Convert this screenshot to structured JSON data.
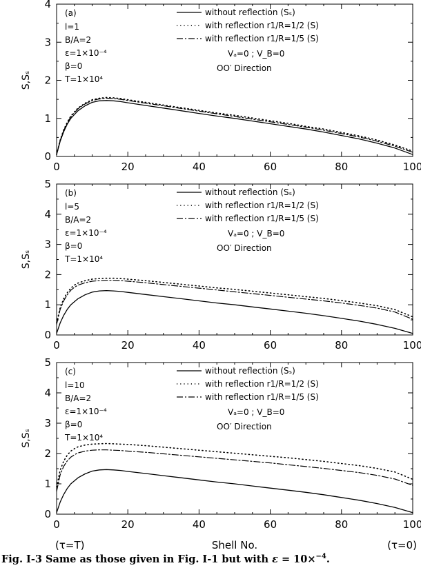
{
  "figure": {
    "caption_prefix": "Fig. I-3 Same as those given in Fig. I-1 but with ",
    "caption_math_eps": "ε",
    "caption_math_eq": " = 10×",
    "caption_math_exp": "−4",
    "caption_end": ".",
    "xlabel": "Shell No.",
    "x_left_annotation": "(τ=T)",
    "x_right_annotation": "(τ=0)"
  },
  "chart_data": [
    {
      "type": "line",
      "panel_label": "(a)",
      "params": [
        "l=1",
        "B/A=2",
        "ε=1×10⁻⁴",
        "β=0",
        "T=1×10⁴"
      ],
      "ylabel": "S,Sₛ",
      "xlim": [
        0,
        100
      ],
      "ylim": [
        0,
        4
      ],
      "xticks": [
        0,
        20,
        40,
        60,
        80,
        100
      ],
      "yticks": [
        0,
        1,
        2,
        3,
        4
      ],
      "grid": false,
      "legend_position": "top-center",
      "velocity_note": "Vₐ=0 ; V_B=0",
      "direction_note": "OO′ Direction",
      "x": [
        0,
        1,
        2,
        3,
        4,
        5,
        6,
        8,
        10,
        12,
        14,
        16,
        18,
        20,
        25,
        30,
        35,
        40,
        45,
        50,
        55,
        60,
        65,
        70,
        75,
        80,
        85,
        90,
        95,
        100
      ],
      "series": [
        {
          "name": "without reflection (Sₛ)",
          "style": "solid",
          "values": [
            0.05,
            0.4,
            0.65,
            0.85,
            1.0,
            1.1,
            1.2,
            1.33,
            1.42,
            1.46,
            1.47,
            1.46,
            1.44,
            1.41,
            1.34,
            1.27,
            1.2,
            1.13,
            1.06,
            1.0,
            0.93,
            0.86,
            0.79,
            0.72,
            0.64,
            0.55,
            0.46,
            0.35,
            0.22,
            0.05
          ]
        },
        {
          "name": "with reflection r1/R=1/2 (S)",
          "style": "dotted",
          "values": [
            0.05,
            0.43,
            0.7,
            0.9,
            1.06,
            1.17,
            1.27,
            1.4,
            1.49,
            1.53,
            1.55,
            1.54,
            1.52,
            1.49,
            1.42,
            1.35,
            1.28,
            1.21,
            1.14,
            1.08,
            1.01,
            0.94,
            0.87,
            0.79,
            0.72,
            0.63,
            0.54,
            0.43,
            0.3,
            0.14
          ]
        },
        {
          "name": "with reflection r1/R=1/5 (S)",
          "style": "dashdot",
          "values": [
            0.05,
            0.42,
            0.68,
            0.88,
            1.04,
            1.15,
            1.25,
            1.38,
            1.47,
            1.51,
            1.53,
            1.52,
            1.5,
            1.47,
            1.4,
            1.33,
            1.26,
            1.19,
            1.12,
            1.05,
            0.98,
            0.91,
            0.84,
            0.77,
            0.69,
            0.6,
            0.51,
            0.4,
            0.27,
            0.11
          ]
        }
      ]
    },
    {
      "type": "line",
      "panel_label": "(b)",
      "params": [
        "l=5",
        "B/A=2",
        "ε=1×10⁻⁴",
        "β=0",
        "T=1×10⁴"
      ],
      "ylabel": "S,Sₛ",
      "xlim": [
        0,
        100
      ],
      "ylim": [
        0,
        5
      ],
      "xticks": [
        0,
        20,
        40,
        60,
        80,
        100
      ],
      "yticks": [
        0,
        1,
        2,
        3,
        4,
        5
      ],
      "grid": false,
      "legend_position": "top-center",
      "velocity_note": "Vₐ=0 ; V_B=0",
      "direction_note": "OO′ Direction",
      "x": [
        0,
        1,
        2,
        3,
        4,
        5,
        6,
        8,
        10,
        12,
        14,
        16,
        18,
        20,
        25,
        30,
        35,
        40,
        45,
        50,
        55,
        60,
        65,
        70,
        75,
        80,
        85,
        90,
        95,
        100
      ],
      "series": [
        {
          "name": "without reflection (Sₛ)",
          "style": "solid",
          "values": [
            0.05,
            0.4,
            0.65,
            0.85,
            1.0,
            1.1,
            1.2,
            1.33,
            1.42,
            1.46,
            1.47,
            1.46,
            1.44,
            1.41,
            1.34,
            1.27,
            1.2,
            1.13,
            1.06,
            1.0,
            0.93,
            0.86,
            0.79,
            0.72,
            0.64,
            0.55,
            0.46,
            0.35,
            0.22,
            0.05
          ]
        },
        {
          "name": "with reflection r1/R=1/2 (S)",
          "style": "dotted",
          "values": [
            0.4,
            0.9,
            1.2,
            1.4,
            1.55,
            1.65,
            1.72,
            1.8,
            1.85,
            1.87,
            1.88,
            1.88,
            1.87,
            1.85,
            1.8,
            1.74,
            1.68,
            1.62,
            1.56,
            1.51,
            1.45,
            1.39,
            1.33,
            1.27,
            1.21,
            1.14,
            1.06,
            0.97,
            0.84,
            0.6
          ]
        },
        {
          "name": "with reflection r1/R=1/5 (S)",
          "style": "dashdot",
          "values": [
            0.35,
            0.85,
            1.13,
            1.33,
            1.48,
            1.58,
            1.65,
            1.73,
            1.78,
            1.8,
            1.81,
            1.81,
            1.8,
            1.78,
            1.73,
            1.67,
            1.61,
            1.55,
            1.49,
            1.43,
            1.37,
            1.31,
            1.25,
            1.19,
            1.13,
            1.06,
            0.98,
            0.89,
            0.76,
            0.52
          ]
        }
      ]
    },
    {
      "type": "line",
      "panel_label": "(c)",
      "params": [
        "l=10",
        "B/A=2",
        "ε=1×10⁻⁴",
        "β=0",
        "T=1×10⁴"
      ],
      "ylabel": "S,Sₛ",
      "xlim": [
        0,
        100
      ],
      "ylim": [
        0,
        5
      ],
      "xticks": [
        0,
        20,
        40,
        60,
        80,
        100
      ],
      "yticks": [
        0,
        1,
        2,
        3,
        4,
        5
      ],
      "grid": false,
      "legend_position": "top-center",
      "velocity_note": "Vₐ=0 ; V_B=0",
      "direction_note": "OO′ Direction",
      "x": [
        0,
        1,
        2,
        3,
        4,
        5,
        6,
        8,
        10,
        12,
        14,
        16,
        18,
        20,
        25,
        30,
        35,
        40,
        45,
        50,
        55,
        60,
        65,
        70,
        75,
        80,
        85,
        90,
        95,
        100
      ],
      "series": [
        {
          "name": "without reflection (Sₛ)",
          "style": "solid",
          "values": [
            0.05,
            0.4,
            0.65,
            0.85,
            1.0,
            1.1,
            1.2,
            1.33,
            1.42,
            1.46,
            1.47,
            1.46,
            1.44,
            1.41,
            1.34,
            1.27,
            1.2,
            1.13,
            1.06,
            1.0,
            0.93,
            0.86,
            0.79,
            0.72,
            0.64,
            0.55,
            0.46,
            0.35,
            0.22,
            0.05
          ]
        },
        {
          "name": "with reflection r1/R=1/2 (S)",
          "style": "dotted",
          "values": [
            0.9,
            1.45,
            1.75,
            1.95,
            2.08,
            2.16,
            2.22,
            2.28,
            2.31,
            2.32,
            2.33,
            2.32,
            2.31,
            2.3,
            2.26,
            2.21,
            2.16,
            2.11,
            2.06,
            2.01,
            1.96,
            1.91,
            1.86,
            1.8,
            1.74,
            1.67,
            1.6,
            1.51,
            1.39,
            1.15
          ]
        },
        {
          "name": "with reflection r1/R=1/5 (S)",
          "style": "dashdot",
          "values": [
            0.75,
            1.3,
            1.58,
            1.76,
            1.88,
            1.96,
            2.02,
            2.08,
            2.11,
            2.12,
            2.12,
            2.11,
            2.1,
            2.08,
            2.04,
            1.99,
            1.94,
            1.89,
            1.84,
            1.79,
            1.74,
            1.69,
            1.63,
            1.57,
            1.51,
            1.44,
            1.37,
            1.28,
            1.16,
            0.95
          ]
        }
      ]
    }
  ]
}
